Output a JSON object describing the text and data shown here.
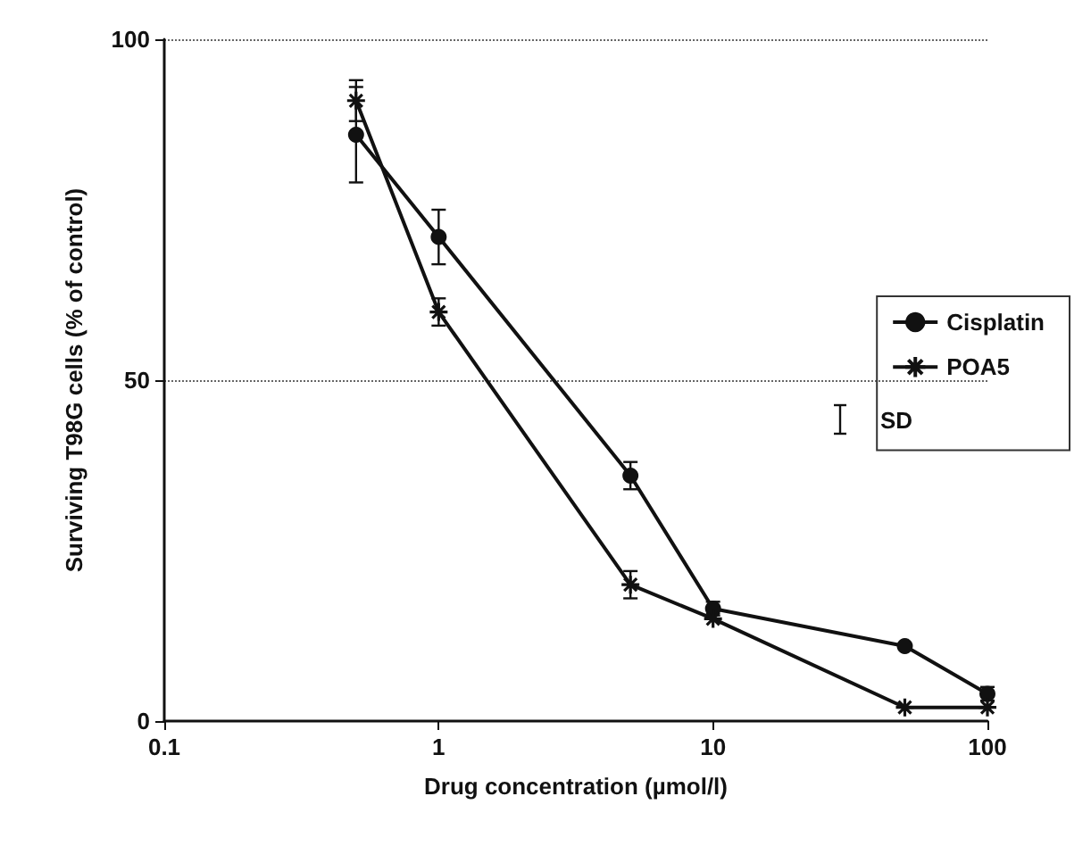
{
  "chart_data": {
    "type": "line",
    "xlabel": "Drug concentration (µmol/l)",
    "ylabel": "Surviving T98G cells (% of control)",
    "log": "x",
    "xlim": [
      0.1,
      100
    ],
    "xticks": [
      0.1,
      1,
      10,
      100
    ],
    "ylim": [
      0,
      100
    ],
    "yticks": [
      0,
      50,
      100
    ],
    "grid": "y",
    "legend": "right",
    "annotations": [
      "SD"
    ],
    "line_style": "solid",
    "series": [
      {
        "name": "Cisplatin",
        "color": "#111111",
        "marker": "circle",
        "x": [
          0.5,
          1,
          5,
          10,
          50,
          100
        ],
        "values": [
          86,
          71,
          36,
          16.5,
          11,
          4
        ],
        "errors": [
          7,
          4,
          2,
          1,
          null,
          1
        ]
      },
      {
        "name": "POA5",
        "color": "#111111",
        "marker": "cross",
        "x": [
          0.5,
          1,
          5,
          10,
          50,
          100
        ],
        "values": [
          91,
          60,
          20,
          15,
          2,
          2
        ],
        "errors": [
          3,
          2,
          2,
          null,
          null,
          null
        ]
      }
    ]
  }
}
